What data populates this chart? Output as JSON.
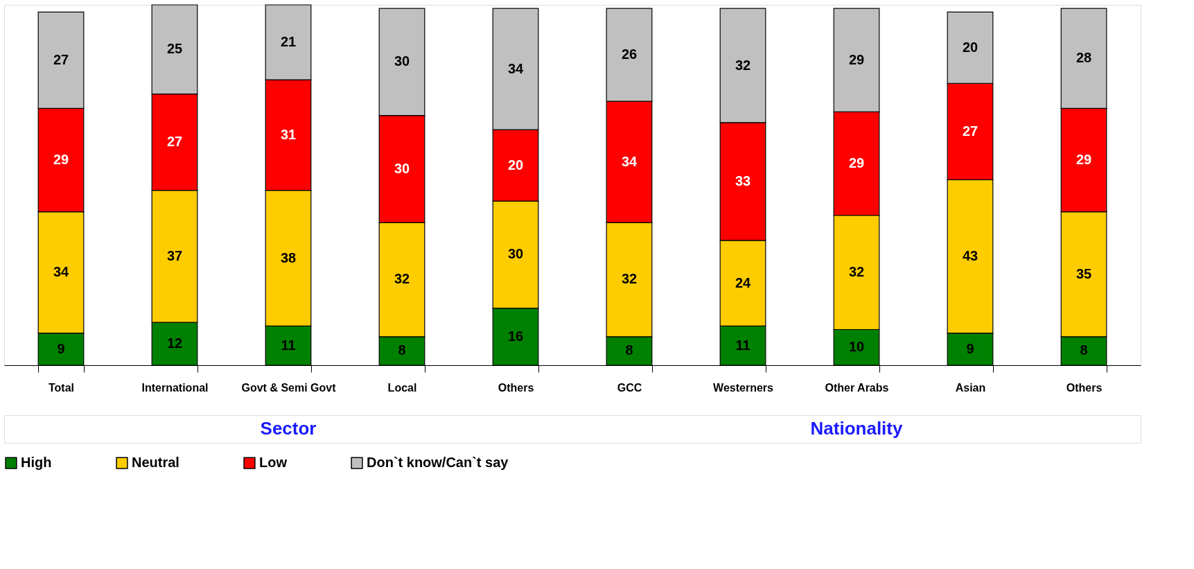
{
  "chart_data": {
    "type": "bar",
    "stacked": true,
    "data_labels": true,
    "legend": "bottom",
    "grid": false,
    "categories": [
      "Total",
      "International",
      "Govt & Semi Govt",
      "Local",
      "Others",
      "GCC",
      "Westerners",
      "Other Arabs",
      "Asian",
      "Others"
    ],
    "series": [
      {
        "name": "High",
        "color": "#008000",
        "values": [
          9,
          12,
          11,
          8,
          16,
          8,
          11,
          10,
          9,
          8
        ]
      },
      {
        "name": "Neutral",
        "color": "#ffcc00",
        "values": [
          34,
          37,
          38,
          32,
          30,
          32,
          24,
          32,
          43,
          35
        ]
      },
      {
        "name": "Low",
        "color": "#ff0000",
        "values": [
          29,
          27,
          31,
          30,
          20,
          34,
          33,
          29,
          27,
          29
        ]
      },
      {
        "name": "Don`t know/Can`t say",
        "color": "#c0c0c0",
        "values": [
          27,
          25,
          21,
          30,
          34,
          26,
          32,
          29,
          20,
          28
        ]
      }
    ],
    "annotations": [
      "Sector",
      "Nationality"
    ]
  }
}
